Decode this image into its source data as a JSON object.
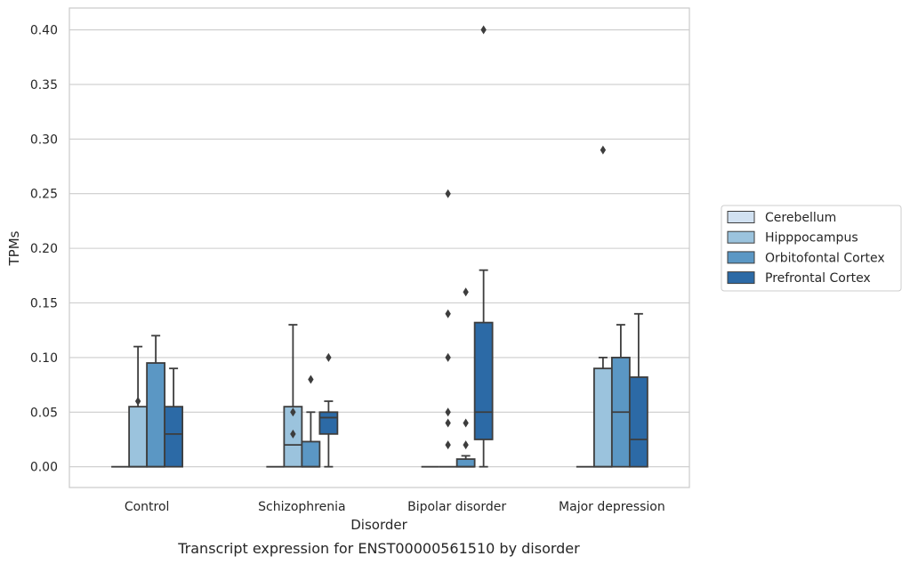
{
  "caption": "Transcript expression for ENST00000561510 by disorder",
  "chart_data": {
    "type": "box",
    "xlabel": "Disorder",
    "ylabel": "TPMs",
    "ylim": [
      -0.019,
      0.42
    ],
    "yticks": [
      "0.00",
      "0.05",
      "0.10",
      "0.15",
      "0.20",
      "0.25",
      "0.30",
      "0.35",
      "0.40"
    ],
    "ytick_values": [
      0,
      0.05,
      0.1,
      0.15,
      0.2,
      0.25,
      0.3,
      0.35,
      0.4
    ],
    "grid": true,
    "legend_position": "right",
    "categories": [
      "Control",
      "Schizophrenia",
      "Bipolar disorder",
      "Major depression"
    ],
    "series": [
      {
        "name": "Cerebellum",
        "color": "#d1e1f1",
        "boxes": [
          {
            "whislo": 0,
            "q1": 0,
            "med": 0,
            "q3": 0,
            "whishi": 0,
            "fliers": []
          },
          {
            "whislo": 0,
            "q1": 0,
            "med": 0,
            "q3": 0,
            "whishi": 0,
            "fliers": []
          },
          {
            "whislo": 0,
            "q1": 0,
            "med": 0,
            "q3": 0,
            "whishi": 0,
            "fliers": []
          },
          {
            "whislo": 0,
            "q1": 0,
            "med": 0,
            "q3": 0,
            "whishi": 0,
            "fliers": []
          }
        ]
      },
      {
        "name": "Hipppocampus",
        "color": "#9bc3dd",
        "boxes": [
          {
            "whislo": 0,
            "q1": 0,
            "med": 0,
            "q3": 0.055,
            "whishi": 0.11,
            "fliers": [
              0.06
            ]
          },
          {
            "whislo": 0,
            "q1": 0,
            "med": 0.02,
            "q3": 0.055,
            "whishi": 0.13,
            "fliers": [
              0.05,
              0.03
            ]
          },
          {
            "whislo": 0,
            "q1": 0,
            "med": 0,
            "q3": 0,
            "whishi": 0,
            "fliers": [
              0.25,
              0.14,
              0.1,
              0.05,
              0.04,
              0.02
            ]
          },
          {
            "whislo": 0,
            "q1": 0,
            "med": 0,
            "q3": 0.09,
            "whishi": 0.1,
            "fliers": [
              0.29
            ]
          }
        ]
      },
      {
        "name": "Orbitofontal Cortex",
        "color": "#5b97c4",
        "boxes": [
          {
            "whislo": 0,
            "q1": 0,
            "med": 0,
            "q3": 0.095,
            "whishi": 0.12,
            "fliers": []
          },
          {
            "whislo": 0,
            "q1": 0,
            "med": 0,
            "q3": 0.023,
            "whishi": 0.05,
            "fliers": [
              0.08
            ]
          },
          {
            "whislo": 0,
            "q1": 0,
            "med": 0,
            "q3": 0.007,
            "whishi": 0.01,
            "fliers": [
              0.16,
              0.04,
              0.02
            ]
          },
          {
            "whislo": 0,
            "q1": 0,
            "med": 0.05,
            "q3": 0.1,
            "whishi": 0.13,
            "fliers": []
          }
        ]
      },
      {
        "name": "Prefrontal Cortex",
        "color": "#2c6aa6",
        "boxes": [
          {
            "whislo": 0,
            "q1": 0,
            "med": 0.03,
            "q3": 0.055,
            "whishi": 0.09,
            "fliers": []
          },
          {
            "whislo": 0,
            "q1": 0.03,
            "med": 0.045,
            "q3": 0.05,
            "whishi": 0.06,
            "fliers": [
              0.1
            ]
          },
          {
            "whislo": 0,
            "q1": 0.025,
            "med": 0.05,
            "q3": 0.132,
            "whishi": 0.18,
            "fliers": [
              0.4
            ]
          },
          {
            "whislo": 0,
            "q1": 0,
            "med": 0.025,
            "q3": 0.082,
            "whishi": 0.14,
            "fliers": []
          }
        ]
      }
    ]
  }
}
